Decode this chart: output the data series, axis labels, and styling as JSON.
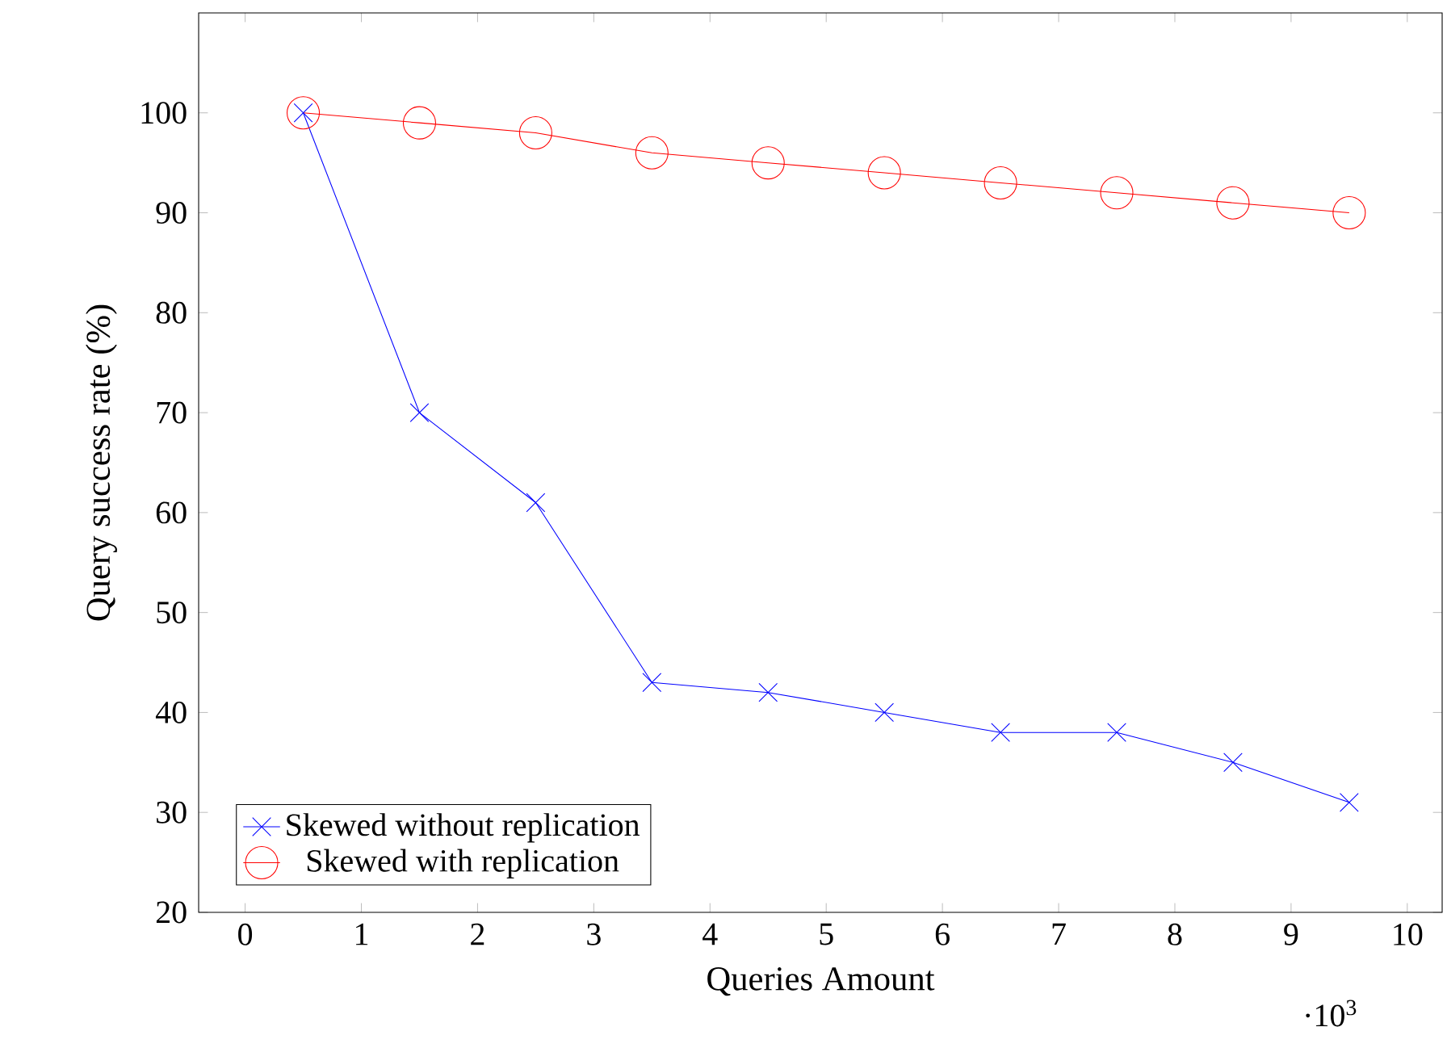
{
  "chart_data": {
    "type": "line",
    "xlabel": "Queries Amount",
    "ylabel": "Query success rate (%)",
    "x": [
      0.5,
      1.5,
      2.5,
      3.5,
      4.5,
      5.5,
      6.5,
      7.5,
      8.5,
      9.5
    ],
    "series": [
      {
        "name": "Skewed without replication",
        "color": "#0000ff",
        "marker": "cross",
        "values": [
          100,
          70,
          61,
          43,
          42,
          40,
          38,
          38,
          35,
          31
        ]
      },
      {
        "name": "Skewed with replication",
        "color": "#ff0000",
        "marker": "circle",
        "values": [
          100,
          99,
          98,
          96,
          95,
          94,
          93,
          92,
          91,
          90
        ]
      }
    ],
    "xlim": [
      -0.4,
      10.3
    ],
    "ylim": [
      20,
      110
    ],
    "xticks": [
      0,
      1,
      2,
      3,
      4,
      5,
      6,
      7,
      8,
      9,
      10
    ],
    "yticks": [
      20,
      30,
      40,
      50,
      60,
      70,
      80,
      90,
      100
    ],
    "annotations": [
      "·10$^{3}$"
    ],
    "legend": "bottom left",
    "line_style": "solid",
    "grid": false
  }
}
